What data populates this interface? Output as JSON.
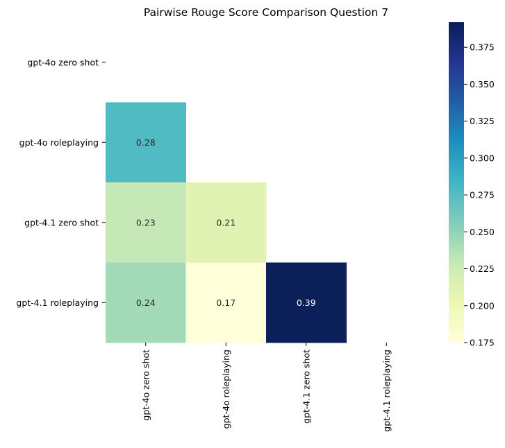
{
  "chart_data": {
    "type": "heatmap",
    "title": "Pairwise Rouge Score Comparison Question 7",
    "row_labels": [
      "gpt-4o zero shot",
      "gpt-4o roleplaying",
      "gpt-4.1 zero shot",
      "gpt-4.1 roleplaying"
    ],
    "col_labels": [
      "gpt-4o zero shot",
      "gpt-4o roleplaying",
      "gpt-4.1 zero shot",
      "gpt-4.1 roleplaying"
    ],
    "values": [
      [
        null,
        null,
        null,
        null
      ],
      [
        0.28,
        null,
        null,
        null
      ],
      [
        0.23,
        0.21,
        null,
        null
      ],
      [
        0.24,
        0.17,
        0.39,
        null
      ]
    ],
    "mask": "upper triangle including diagonal",
    "colormap": "YlGnBu",
    "colorbar": {
      "min": 0.175,
      "max": 0.392,
      "ticks": [
        "0.175",
        "0.200",
        "0.225",
        "0.250",
        "0.275",
        "0.300",
        "0.325",
        "0.350",
        "0.375"
      ]
    },
    "colors": {
      "cell_1_0": "#50bbc2",
      "cell_2_0": "#c5e8b6",
      "cell_2_1": "#e1f3b3",
      "cell_3_0": "#a3dab8",
      "cell_3_1": "#ffffd9",
      "cell_3_2": "#0b1f59"
    }
  }
}
